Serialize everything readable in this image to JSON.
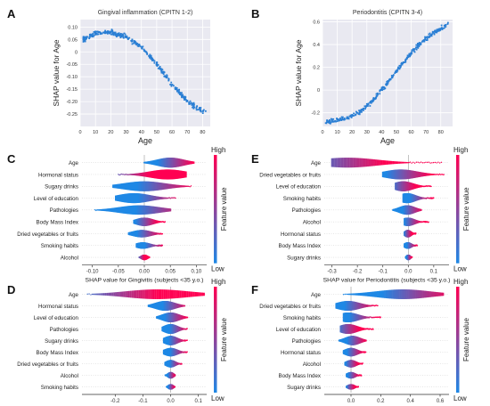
{
  "chart_data": [
    {
      "panel": "A",
      "type": "scatter",
      "title": "Gingival inflammation (CPITN 1-2)",
      "xlabel": "Age",
      "ylabel": "SHAP value for Age",
      "xlim": [
        0,
        85
      ],
      "ylim": [
        -0.3,
        0.13
      ],
      "xticks": [
        0,
        10,
        20,
        30,
        40,
        50,
        60,
        70,
        80
      ],
      "yticks": [
        0.1,
        0.05,
        0,
        -0.05,
        -0.1,
        -0.15,
        -0.2,
        -0.25
      ],
      "ytick_labels": [
        "0.10",
        "0.05",
        "0",
        "-0.05",
        "-0.10",
        "-0.15",
        "-0.20",
        "-0.25"
      ],
      "grid": true,
      "color": "#2a7fd4",
      "trend": [
        [
          2,
          0.05
        ],
        [
          10,
          0.075
        ],
        [
          20,
          0.08
        ],
        [
          30,
          0.06
        ],
        [
          40,
          0.02
        ],
        [
          50,
          -0.05
        ],
        [
          60,
          -0.13
        ],
        [
          70,
          -0.2
        ],
        [
          80,
          -0.24
        ]
      ]
    },
    {
      "panel": "B",
      "type": "scatter",
      "title": "Periodontitis (CPITN 3-4)",
      "xlabel": "Age",
      "ylabel": "SHAP value for Age",
      "xlim": [
        0,
        88
      ],
      "ylim": [
        -0.32,
        0.62
      ],
      "xticks": [
        0,
        10,
        20,
        30,
        40,
        50,
        60,
        70,
        80
      ],
      "yticks": [
        0.6,
        0.4,
        0.2,
        0,
        -0.2
      ],
      "ytick_labels": [
        "0.6",
        "0.4",
        "0.2",
        "0",
        "-0.2"
      ],
      "grid": true,
      "color": "#2a7fd4",
      "trend": [
        [
          2,
          -0.28
        ],
        [
          15,
          -0.25
        ],
        [
          25,
          -0.2
        ],
        [
          35,
          -0.08
        ],
        [
          45,
          0.08
        ],
        [
          55,
          0.25
        ],
        [
          65,
          0.4
        ],
        [
          75,
          0.5
        ],
        [
          85,
          0.58
        ]
      ]
    },
    {
      "panel": "C",
      "type": "beeswarm",
      "xlabel": "SHAP value for Gingivitis (subjects <35 y.o.)",
      "xlim": [
        -0.12,
        0.12
      ],
      "xticks": [
        -0.1,
        -0.05,
        0,
        0.05,
        0.1
      ],
      "xtick_labels": [
        "-0.10",
        "-0.05",
        "0.00",
        "0.05",
        "0.10"
      ],
      "colorbar": {
        "high": "High",
        "low": "Low",
        "label": "Feature value"
      },
      "features": [
        {
          "name": "Age",
          "min": 0.0,
          "max": 0.095,
          "peak": 0.05,
          "hot": 0.06
        },
        {
          "name": "Hormonal status",
          "min": -0.05,
          "max": 0.08,
          "peak": 0.045,
          "hot": -0.035
        },
        {
          "name": "Sugary drinks",
          "min": -0.06,
          "max": 0.09,
          "peak": 0.0,
          "hot": 0.04
        },
        {
          "name": "Level of education",
          "min": -0.055,
          "max": 0.06,
          "peak": -0.02,
          "hot": 0.03
        },
        {
          "name": "Pathologies",
          "min": -0.095,
          "max": 0.05,
          "peak": -0.01,
          "hot": 0.035
        },
        {
          "name": "Body Mass Index",
          "min": -0.02,
          "max": 0.04,
          "peak": 0.0,
          "hot": 0.005
        },
        {
          "name": "Dried vegetables or fruits",
          "min": -0.03,
          "max": 0.035,
          "peak": -0.005,
          "hot": 0.01
        },
        {
          "name": "Smoking habits",
          "min": -0.015,
          "max": 0.035,
          "peak": -0.003,
          "hot": 0.02
        },
        {
          "name": "Alcohol",
          "min": -0.01,
          "max": 0.01,
          "peak": 0.0,
          "hot": -0.006
        }
      ]
    },
    {
      "panel": "E",
      "type": "beeswarm",
      "xlabel": "SHAP value for Periodontitis (subjects <35 y.o.)",
      "xlim": [
        -0.33,
        0.16
      ],
      "xticks": [
        -0.3,
        -0.2,
        -0.1,
        0,
        0.1
      ],
      "xtick_labels": [
        "-0.3",
        "-0.2",
        "-0.1",
        "0.0",
        "0.1"
      ],
      "colorbar": {
        "high": "High",
        "low": "Low",
        "label": "Feature value"
      },
      "features": [
        {
          "name": "Age",
          "min": -0.3,
          "max": 0.13,
          "peak": -0.24,
          "hot": -0.25
        },
        {
          "name": "Dried vegetables or fruits",
          "min": -0.1,
          "max": 0.14,
          "peak": -0.03,
          "hot": 0.0
        },
        {
          "name": "Level of education",
          "min": -0.05,
          "max": 0.09,
          "peak": -0.02,
          "hot": -0.02
        },
        {
          "name": "Smoking habits",
          "min": -0.02,
          "max": 0.1,
          "peak": -0.005,
          "hot": 0.05
        },
        {
          "name": "Pathologies",
          "min": -0.06,
          "max": 0.05,
          "peak": -0.005,
          "hot": 0.02
        },
        {
          "name": "Alcohol",
          "min": -0.015,
          "max": 0.08,
          "peak": -0.002,
          "hot": 0.02
        },
        {
          "name": "Hormonal status",
          "min": -0.015,
          "max": 0.03,
          "peak": -0.002,
          "hot": 0.0
        },
        {
          "name": "Body Mass Index",
          "min": -0.015,
          "max": 0.035,
          "peak": -0.002,
          "hot": 0.015
        },
        {
          "name": "Sugary drinks",
          "min": -0.01,
          "max": 0.015,
          "peak": 0.0,
          "hot": 0.005
        }
      ]
    },
    {
      "panel": "D",
      "type": "beeswarm",
      "xlabel": "SHAP value for Gingivitis (subjects ≥35 y.o.)",
      "xlim": [
        -0.32,
        0.13
      ],
      "xticks": [
        -0.2,
        -0.1,
        0,
        0.1
      ],
      "xtick_labels": [
        "-0.2",
        "-0.1",
        "0.0",
        "0.1"
      ],
      "colorbar": {
        "high": "High",
        "low": "Low",
        "label": "Feature value"
      },
      "features": [
        {
          "name": "Age",
          "min": -0.3,
          "max": 0.12,
          "peak": -0.05,
          "hot": -0.2
        },
        {
          "name": "Hormonal status",
          "min": -0.08,
          "max": 0.05,
          "peak": -0.02,
          "hot": 0.02
        },
        {
          "name": "Level of education",
          "min": -0.05,
          "max": 0.06,
          "peak": 0.0,
          "hot": 0.02
        },
        {
          "name": "Pathologies",
          "min": -0.03,
          "max": 0.06,
          "peak": 0.0,
          "hot": 0.03
        },
        {
          "name": "Sugary drinks",
          "min": -0.025,
          "max": 0.06,
          "peak": 0.0,
          "hot": 0.025
        },
        {
          "name": "Body Mass Index",
          "min": -0.025,
          "max": 0.06,
          "peak": 0.0,
          "hot": 0.03
        },
        {
          "name": "Dried vegetables or fruits",
          "min": -0.02,
          "max": 0.04,
          "peak": 0.0,
          "hot": 0.02
        },
        {
          "name": "Alcohol",
          "min": -0.02,
          "max": 0.015,
          "peak": 0.0,
          "hot": 0.005
        },
        {
          "name": "Smoking habits",
          "min": -0.015,
          "max": 0.015,
          "peak": 0.0,
          "hot": 0.005
        }
      ]
    },
    {
      "panel": "F",
      "type": "beeswarm",
      "xlabel": "SHAP value for Periodontitis (subjects ≥35 y.o.)",
      "xlim": [
        -0.18,
        0.66
      ],
      "xticks": [
        0,
        0.2,
        0.4,
        0.6
      ],
      "xtick_labels": [
        "0.0",
        "0.2",
        "0.4",
        "0.6"
      ],
      "colorbar": {
        "high": "High",
        "low": "Low",
        "label": "Feature value"
      },
      "features": [
        {
          "name": "Age",
          "min": -0.05,
          "max": 0.62,
          "peak": 0.35,
          "hot": 0.45
        },
        {
          "name": "Dried vegetables or fruits",
          "min": -0.1,
          "max": 0.18,
          "peak": -0.02,
          "hot": 0.06
        },
        {
          "name": "Smoking habits",
          "min": -0.05,
          "max": 0.2,
          "peak": -0.02,
          "hot": 0.08
        },
        {
          "name": "Level of education",
          "min": -0.07,
          "max": 0.15,
          "peak": -0.02,
          "hot": -0.02
        },
        {
          "name": "Pathologies",
          "min": -0.08,
          "max": 0.1,
          "peak": 0.01,
          "hot": 0.04
        },
        {
          "name": "Hormonal status",
          "min": -0.05,
          "max": 0.1,
          "peak": 0.0,
          "hot": 0.03
        },
        {
          "name": "Alcohol",
          "min": -0.04,
          "max": 0.08,
          "peak": 0.0,
          "hot": 0.01
        },
        {
          "name": "Body Mass Index",
          "min": -0.03,
          "max": 0.07,
          "peak": 0.0,
          "hot": 0.02
        },
        {
          "name": "Sugary drinks",
          "min": -0.03,
          "max": 0.05,
          "peak": 0.0,
          "hot": 0.0
        }
      ]
    }
  ]
}
